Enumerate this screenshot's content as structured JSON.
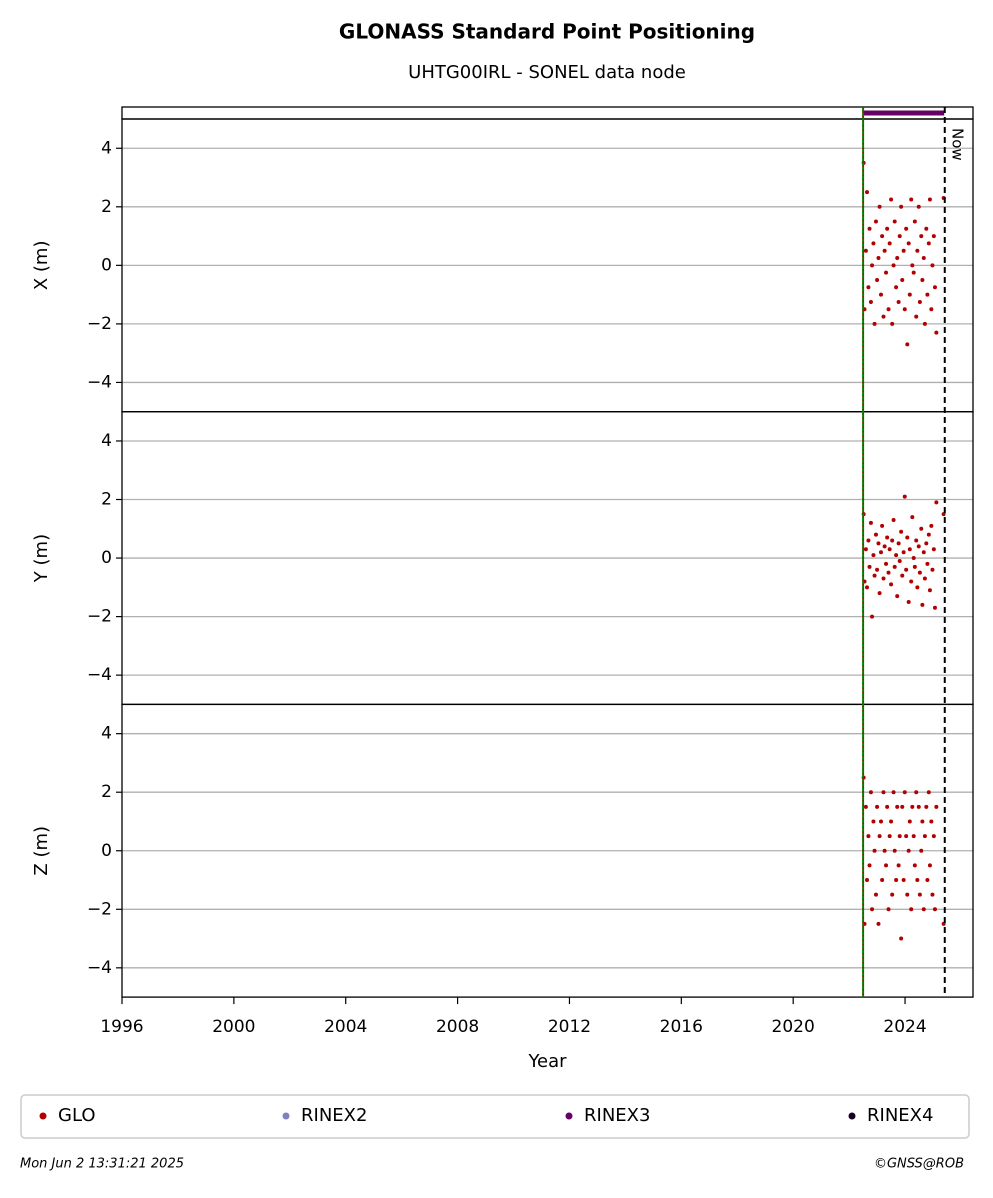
{
  "chart_data": [
    {
      "type": "scatter",
      "title": "GLONASS Standard Point Positioning",
      "subtitle": "UHTG00IRL - SONEL data node",
      "ylabel": "X (m)",
      "ylim": [
        -5,
        5
      ],
      "yticks": [
        {
          "value": -4,
          "label": "−4"
        },
        {
          "value": -2,
          "label": "−2"
        },
        0,
        2,
        4
      ],
      "grid": true,
      "start_line": 2022.5,
      "now": {
        "value": 2025.42,
        "label": "Now"
      },
      "sources": [
        {
          "name": "RINEX2",
          "color": "#8080c0"
        },
        {
          "name": "RINEX3",
          "color": "#660066",
          "start": 2022.5,
          "end": 2025.4
        },
        {
          "name": "RINEX4",
          "color": "#1a0022"
        }
      ],
      "series": [
        {
          "name": "GLO",
          "color": "#b30000",
          "x": [
            2022.52,
            2022.55,
            2022.6,
            2022.64,
            2022.69,
            2022.73,
            2022.78,
            2022.82,
            2022.87,
            2022.91,
            2022.96,
            2023.0,
            2023.05,
            2023.09,
            2023.14,
            2023.18,
            2023.23,
            2023.27,
            2023.32,
            2023.36,
            2023.41,
            2023.45,
            2023.5,
            2023.54,
            2023.59,
            2023.63,
            2023.68,
            2023.72,
            2023.77,
            2023.81,
            2023.86,
            2023.9,
            2023.95,
            2023.99,
            2024.04,
            2024.08,
            2024.13,
            2024.17,
            2024.22,
            2024.26,
            2024.31,
            2024.35,
            2024.4,
            2024.44,
            2024.49,
            2024.53,
            2024.58,
            2024.62,
            2024.67,
            2024.71,
            2024.76,
            2024.8,
            2024.85,
            2024.89,
            2024.94,
            2024.98,
            2025.03,
            2025.07,
            2025.12,
            2025.38
          ],
          "values": [
            3.5,
            -1.5,
            0.5,
            2.5,
            -0.75,
            1.25,
            -1.25,
            0,
            0.75,
            -2.0,
            1.5,
            -0.5,
            0.25,
            2.0,
            -1.0,
            1.0,
            -1.75,
            0.5,
            -0.25,
            1.25,
            -1.5,
            0.75,
            2.25,
            -2.0,
            0,
            1.5,
            -0.75,
            0.25,
            -1.25,
            1.0,
            2.0,
            -0.5,
            0.5,
            -1.5,
            1.25,
            -2.7,
            0.75,
            -1.0,
            2.25,
            0,
            -0.25,
            1.5,
            -1.75,
            0.5,
            2.0,
            -1.25,
            1.0,
            -0.5,
            0.25,
            -2.0,
            1.25,
            -1.0,
            0.75,
            2.25,
            -1.5,
            0,
            1.0,
            -0.75,
            -2.3,
            2.3
          ]
        }
      ]
    },
    {
      "type": "scatter",
      "ylabel": "Y (m)",
      "ylim": [
        -5,
        5
      ],
      "yticks": [
        {
          "value": -4,
          "label": "−4"
        },
        {
          "value": -2,
          "label": "−2"
        },
        0,
        2,
        4
      ],
      "grid": true,
      "series": [
        {
          "color": "#b30000",
          "x": [
            2022.52,
            2022.55,
            2022.6,
            2022.64,
            2022.69,
            2022.73,
            2022.78,
            2022.82,
            2022.87,
            2022.91,
            2022.96,
            2023.0,
            2023.05,
            2023.09,
            2023.14,
            2023.18,
            2023.23,
            2023.27,
            2023.32,
            2023.36,
            2023.41,
            2023.45,
            2023.5,
            2023.54,
            2023.59,
            2023.63,
            2023.68,
            2023.72,
            2023.77,
            2023.81,
            2023.86,
            2023.9,
            2023.95,
            2023.99,
            2024.04,
            2024.08,
            2024.13,
            2024.17,
            2024.22,
            2024.26,
            2024.31,
            2024.35,
            2024.4,
            2024.44,
            2024.49,
            2024.53,
            2024.58,
            2024.62,
            2024.67,
            2024.71,
            2024.76,
            2024.8,
            2024.85,
            2024.89,
            2024.94,
            2024.98,
            2025.03,
            2025.07,
            2025.12,
            2025.38
          ],
          "values": [
            1.5,
            -0.8,
            0.3,
            -1.0,
            0.6,
            -0.3,
            1.2,
            -2.0,
            0.1,
            -0.6,
            0.8,
            -0.4,
            0.5,
            -1.2,
            0.2,
            1.1,
            -0.7,
            0.4,
            -0.2,
            0.7,
            -0.5,
            0.3,
            -0.9,
            0.6,
            1.3,
            -0.3,
            0.1,
            -1.3,
            0.5,
            -0.1,
            0.9,
            -0.6,
            0.2,
            2.1,
            -0.4,
            0.7,
            -1.5,
            0.3,
            -0.8,
            1.4,
            0.0,
            -0.3,
            0.6,
            -1.0,
            0.4,
            -0.5,
            1.0,
            -1.6,
            0.2,
            -0.7,
            0.5,
            -0.2,
            0.8,
            -1.1,
            1.1,
            -0.4,
            0.3,
            -1.7,
            1.9,
            1.5
          ]
        }
      ]
    },
    {
      "type": "scatter",
      "ylabel": "Z (m)",
      "xlabel": "Year",
      "ylim": [
        -5,
        5
      ],
      "yticks": [
        {
          "value": -4,
          "label": "−4"
        },
        {
          "value": -2,
          "label": "−2"
        },
        0,
        2,
        4
      ],
      "grid": true,
      "xlim": [
        1996,
        2026.43
      ],
      "xticks": [
        1996,
        2000,
        2004,
        2008,
        2012,
        2016,
        2020,
        2024
      ],
      "series": [
        {
          "color": "#b30000",
          "x": [
            2022.52,
            2022.55,
            2022.6,
            2022.64,
            2022.69,
            2022.73,
            2022.78,
            2022.82,
            2022.87,
            2022.91,
            2022.96,
            2023.0,
            2023.05,
            2023.09,
            2023.14,
            2023.18,
            2023.23,
            2023.27,
            2023.32,
            2023.36,
            2023.41,
            2023.45,
            2023.5,
            2023.54,
            2023.59,
            2023.63,
            2023.68,
            2023.72,
            2023.77,
            2023.81,
            2023.86,
            2023.9,
            2023.95,
            2023.99,
            2024.04,
            2024.08,
            2024.13,
            2024.17,
            2024.22,
            2024.26,
            2024.31,
            2024.35,
            2024.4,
            2024.44,
            2024.49,
            2024.53,
            2024.58,
            2024.62,
            2024.67,
            2024.71,
            2024.76,
            2024.8,
            2024.85,
            2024.89,
            2024.94,
            2024.98,
            2025.03,
            2025.07,
            2025.12,
            2025.38
          ],
          "values": [
            2.5,
            -2.5,
            1.5,
            -1.0,
            0.5,
            -0.5,
            2.0,
            -2.0,
            1.0,
            0,
            -1.5,
            1.5,
            -2.5,
            0.5,
            1.0,
            -1.0,
            2.0,
            0,
            -0.5,
            1.5,
            -2.0,
            0.5,
            1.0,
            -1.5,
            2.0,
            0,
            -1.0,
            1.5,
            -0.5,
            0.5,
            -3.0,
            1.5,
            -1.0,
            2.0,
            0.5,
            -1.5,
            0,
            1.0,
            -2.0,
            1.5,
            0.5,
            -0.5,
            2.0,
            -1.0,
            1.5,
            -1.5,
            0,
            1.0,
            -2.0,
            0.5,
            1.5,
            -1.0,
            2.0,
            -0.5,
            1.0,
            -1.5,
            0.5,
            -2.0,
            1.5,
            -2.5
          ]
        }
      ]
    }
  ],
  "footer": {
    "timestamp": "Mon Jun  2 13:31:21 2025",
    "credit": "©GNSS@ROB"
  }
}
